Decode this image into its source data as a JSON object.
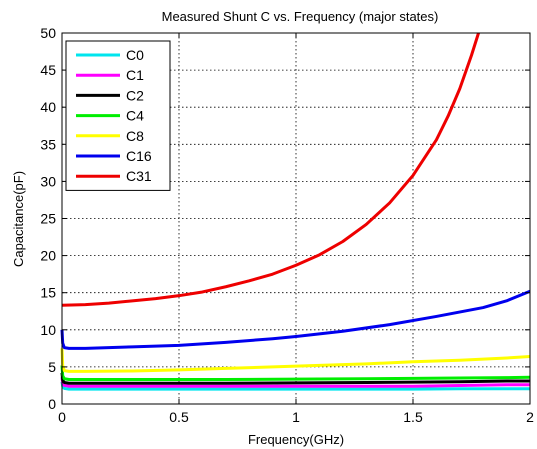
{
  "chart_data": {
    "type": "line",
    "title": "Measured Shunt C vs. Frequency (major states)",
    "xlabel": "Frequency(GHz)",
    "ylabel": "Capacitance(pF)",
    "xlim": [
      0,
      2
    ],
    "ylim": [
      0,
      50
    ],
    "xticks": [
      0,
      0.5,
      1,
      1.5,
      2
    ],
    "xtick_labels": [
      "0",
      "0.5",
      "1",
      "1.5",
      "2"
    ],
    "yticks": [
      0,
      5,
      10,
      15,
      20,
      25,
      30,
      35,
      40,
      45,
      50
    ],
    "ytick_labels": [
      "0",
      "5",
      "10",
      "15",
      "20",
      "25",
      "30",
      "35",
      "40",
      "45",
      "50"
    ],
    "grid": true,
    "legend_position": "top-left",
    "series": [
      {
        "name": "C0",
        "color": "#00e5ee",
        "x": [
          0,
          0.003,
          0.01,
          0.03,
          0.1,
          0.3,
          0.5,
          0.7,
          1.0,
          1.3,
          1.5,
          1.7,
          1.9,
          2.0
        ],
        "y": [
          3.0,
          2.4,
          2.1,
          2.0,
          2.0,
          2.0,
          2.0,
          2.0,
          2.0,
          2.0,
          2.0,
          2.05,
          2.05,
          2.05
        ]
      },
      {
        "name": "C1",
        "color": "#ff00ff",
        "x": [
          0,
          0.003,
          0.01,
          0.03,
          0.1,
          0.3,
          0.5,
          0.7,
          1.0,
          1.3,
          1.5,
          1.7,
          1.9,
          2.0
        ],
        "y": [
          3.6,
          2.8,
          2.5,
          2.4,
          2.4,
          2.4,
          2.4,
          2.4,
          2.4,
          2.4,
          2.4,
          2.5,
          2.6,
          2.6
        ]
      },
      {
        "name": "C2",
        "color": "#000000",
        "x": [
          0,
          0.003,
          0.01,
          0.03,
          0.1,
          0.3,
          0.5,
          0.7,
          1.0,
          1.3,
          1.5,
          1.7,
          1.9,
          2.0
        ],
        "y": [
          4.2,
          3.2,
          2.9,
          2.8,
          2.8,
          2.8,
          2.8,
          2.8,
          2.85,
          2.9,
          2.95,
          3.0,
          3.1,
          3.1
        ]
      },
      {
        "name": "C4",
        "color": "#00ee00",
        "x": [
          0,
          0.003,
          0.01,
          0.03,
          0.1,
          0.3,
          0.5,
          0.7,
          1.0,
          1.3,
          1.5,
          1.7,
          1.9,
          2.0
        ],
        "y": [
          5.2,
          3.8,
          3.4,
          3.3,
          3.3,
          3.3,
          3.3,
          3.3,
          3.35,
          3.4,
          3.45,
          3.5,
          3.55,
          3.6
        ]
      },
      {
        "name": "C8",
        "color": "#ffff00",
        "x": [
          0,
          0.003,
          0.01,
          0.03,
          0.1,
          0.3,
          0.5,
          0.7,
          1.0,
          1.3,
          1.5,
          1.7,
          1.9,
          2.0
        ],
        "y": [
          7.5,
          5.2,
          4.5,
          4.4,
          4.4,
          4.45,
          4.6,
          4.8,
          5.1,
          5.4,
          5.7,
          5.9,
          6.2,
          6.4
        ]
      },
      {
        "name": "C16",
        "color": "#0000ee",
        "x": [
          0,
          0.003,
          0.01,
          0.03,
          0.1,
          0.2,
          0.3,
          0.5,
          0.7,
          0.9,
          1.0,
          1.2,
          1.4,
          1.6,
          1.8,
          1.9,
          2.0
        ],
        "y": [
          10.0,
          8.2,
          7.6,
          7.5,
          7.5,
          7.6,
          7.7,
          7.9,
          8.3,
          8.8,
          9.1,
          9.8,
          10.7,
          11.8,
          13.0,
          13.9,
          15.2
        ]
      },
      {
        "name": "C31",
        "color": "#ee0000",
        "x": [
          0,
          0.1,
          0.2,
          0.3,
          0.4,
          0.5,
          0.6,
          0.7,
          0.8,
          0.9,
          1.0,
          1.1,
          1.2,
          1.3,
          1.4,
          1.5,
          1.6,
          1.65,
          1.7,
          1.75,
          1.78
        ],
        "y": [
          13.3,
          13.4,
          13.6,
          13.9,
          14.2,
          14.6,
          15.1,
          15.8,
          16.6,
          17.5,
          18.7,
          20.1,
          21.9,
          24.2,
          27.1,
          30.8,
          35.6,
          38.8,
          42.5,
          47.0,
          50.0
        ]
      }
    ]
  }
}
